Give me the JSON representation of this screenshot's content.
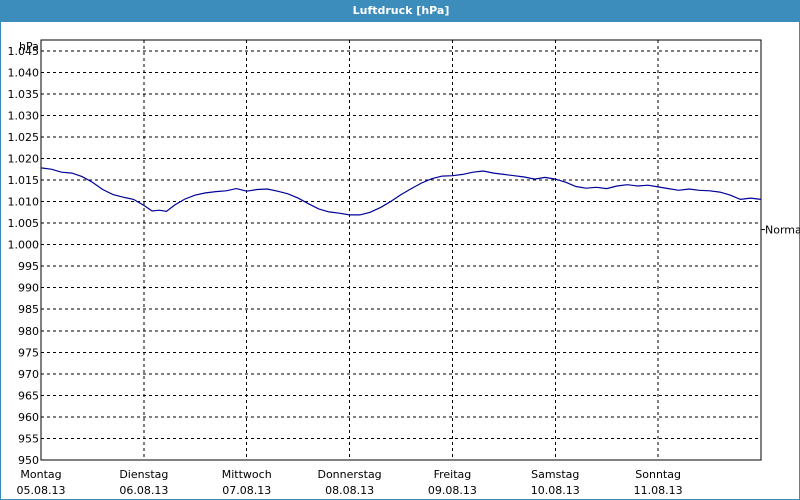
{
  "window": {
    "title": "Luftdruck [hPa]"
  },
  "chart_data": {
    "type": "line",
    "title": "Luftdruck [hPa]",
    "y_unit_label": "hPa",
    "ylim": [
      950,
      1047.5
    ],
    "y_ticks": [
      {
        "value": 1045,
        "label": "1.045"
      },
      {
        "value": 1040,
        "label": "1.040"
      },
      {
        "value": 1035,
        "label": "1.035"
      },
      {
        "value": 1030,
        "label": "1.030"
      },
      {
        "value": 1025,
        "label": "1.025"
      },
      {
        "value": 1020,
        "label": "1.020"
      },
      {
        "value": 1015,
        "label": "1.015"
      },
      {
        "value": 1010,
        "label": "1.010"
      },
      {
        "value": 1005,
        "label": "1.005"
      },
      {
        "value": 1000,
        "label": "1.000"
      },
      {
        "value": 995,
        "label": "995"
      },
      {
        "value": 990,
        "label": "990"
      },
      {
        "value": 985,
        "label": "985"
      },
      {
        "value": 980,
        "label": "980"
      },
      {
        "value": 975,
        "label": "975"
      },
      {
        "value": 970,
        "label": "970"
      },
      {
        "value": 965,
        "label": "965"
      },
      {
        "value": 960,
        "label": "960"
      },
      {
        "value": 955,
        "label": "955"
      },
      {
        "value": 950,
        "label": "950"
      }
    ],
    "xlim": [
      0,
      7
    ],
    "x_ticks": [
      {
        "day": "Montag",
        "date": "05.08.13"
      },
      {
        "day": "Dienstag",
        "date": "06.08.13"
      },
      {
        "day": "Mittwoch",
        "date": "07.08.13"
      },
      {
        "day": "Donnerstag",
        "date": "08.08.13"
      },
      {
        "day": "Freitag",
        "date": "09.08.13"
      },
      {
        "day": "Samstag",
        "date": "10.08.13"
      },
      {
        "day": "Sonntag",
        "date": "11.08.13"
      }
    ],
    "reference": {
      "label": "Normal",
      "value": 1003.5
    },
    "grid": true,
    "series": [
      {
        "color": "#000099",
        "x": [
          0.0,
          0.1,
          0.2,
          0.3,
          0.4,
          0.5,
          0.6,
          0.7,
          0.8,
          0.9,
          0.95,
          1.0,
          1.08,
          1.15,
          1.22,
          1.3,
          1.4,
          1.5,
          1.6,
          1.7,
          1.8,
          1.9,
          2.0,
          2.1,
          2.2,
          2.3,
          2.4,
          2.5,
          2.6,
          2.7,
          2.8,
          2.9,
          3.0,
          3.1,
          3.2,
          3.3,
          3.4,
          3.5,
          3.6,
          3.7,
          3.8,
          3.9,
          4.0,
          4.1,
          4.2,
          4.3,
          4.4,
          4.5,
          4.6,
          4.7,
          4.8,
          4.9,
          5.0,
          5.1,
          5.2,
          5.3,
          5.4,
          5.5,
          5.6,
          5.7,
          5.8,
          5.9,
          6.0,
          6.1,
          6.2,
          6.3,
          6.4,
          6.5,
          6.6,
          6.7,
          6.8,
          6.9,
          7.0
        ],
        "y": [
          1017.8,
          1017.5,
          1016.8,
          1016.6,
          1015.8,
          1014.5,
          1012.8,
          1011.6,
          1011.0,
          1010.5,
          1009.8,
          1009.1,
          1007.8,
          1008.0,
          1007.7,
          1009.2,
          1010.6,
          1011.5,
          1012.0,
          1012.3,
          1012.5,
          1013.0,
          1012.4,
          1012.8,
          1012.9,
          1012.4,
          1011.8,
          1010.8,
          1009.5,
          1008.3,
          1007.6,
          1007.3,
          1006.9,
          1006.9,
          1007.5,
          1008.6,
          1010.0,
          1011.6,
          1013.0,
          1014.3,
          1015.3,
          1015.9,
          1016.0,
          1016.3,
          1016.8,
          1017.1,
          1016.6,
          1016.3,
          1016.0,
          1015.7,
          1015.2,
          1015.6,
          1015.2,
          1014.5,
          1013.5,
          1013.1,
          1013.3,
          1013.0,
          1013.6,
          1013.9,
          1013.6,
          1013.8,
          1013.4,
          1013.0,
          1012.6,
          1012.9,
          1012.6,
          1012.5,
          1012.2,
          1011.5,
          1010.5,
          1010.8,
          1010.5
        ]
      }
    ]
  }
}
